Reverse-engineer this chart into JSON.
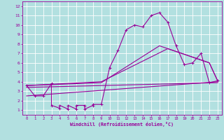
{
  "bg_color": "#b2e0e0",
  "grid_color": "#c8e8e8",
  "line_color": "#990099",
  "xlim": [
    -0.5,
    23.5
  ],
  "ylim": [
    0.5,
    12.5
  ],
  "yticks": [
    1,
    2,
    3,
    4,
    5,
    6,
    7,
    8,
    9,
    10,
    11,
    12
  ],
  "xticks": [
    0,
    1,
    2,
    3,
    4,
    5,
    6,
    7,
    8,
    9,
    10,
    11,
    12,
    13,
    14,
    15,
    16,
    17,
    18,
    19,
    20,
    21,
    22,
    23
  ],
  "xlabel": "Windchill (Refroidissement éolien,°C)",
  "series_main": {
    "x": [
      0,
      1,
      2,
      3,
      3,
      4,
      4,
      5,
      5,
      6,
      6,
      7,
      7,
      8,
      8,
      9,
      10,
      11,
      12,
      13,
      14,
      15,
      16,
      17,
      18,
      19,
      20,
      21,
      22,
      23
    ],
    "y": [
      3.6,
      2.5,
      2.5,
      3.8,
      1.5,
      1.2,
      1.5,
      1.1,
      1.5,
      1.1,
      1.5,
      1.5,
      1.1,
      1.5,
      1.6,
      1.6,
      5.5,
      7.3,
      9.5,
      10.0,
      9.8,
      11.0,
      11.3,
      10.3,
      7.8,
      5.8,
      6.0,
      7.0,
      3.9,
      4.1
    ]
  },
  "line_flat": {
    "x": [
      0,
      23
    ],
    "y": [
      3.4,
      3.9
    ]
  },
  "line_rising1": {
    "x": [
      0,
      9,
      16,
      22,
      23
    ],
    "y": [
      3.6,
      3.9,
      7.8,
      6.0,
      4.1
    ]
  },
  "line_rising2": {
    "x": [
      0,
      23
    ],
    "y": [
      2.5,
      4.0
    ]
  },
  "line_rising3": {
    "x": [
      0,
      9,
      17,
      22,
      23
    ],
    "y": [
      3.6,
      4.0,
      7.5,
      6.0,
      4.1
    ]
  }
}
